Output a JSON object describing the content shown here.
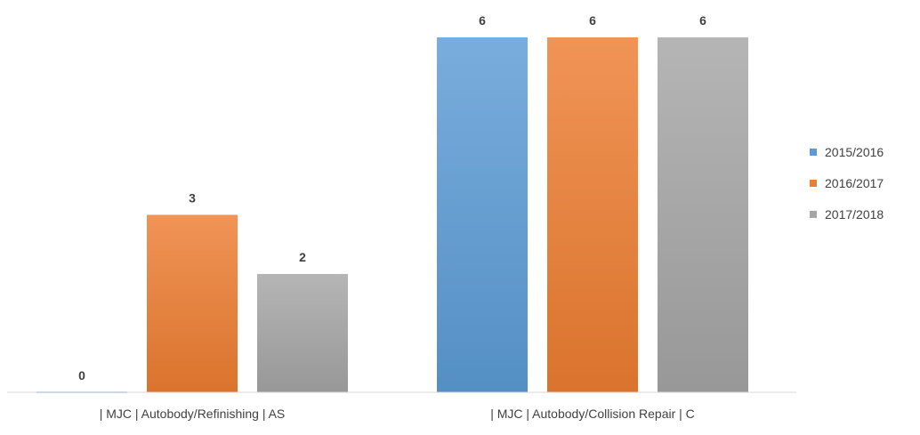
{
  "chart_data": {
    "type": "bar",
    "categories": [
      "| MJC | Autobody/Refinishing | AS",
      "| MJC | Autobody/Collision Repair | C"
    ],
    "series": [
      {
        "name": "2015/2016",
        "values": [
          0,
          6
        ],
        "color": "#5B9BD5"
      },
      {
        "name": "2016/2017",
        "values": [
          3,
          6
        ],
        "color": "#ED7D31"
      },
      {
        "name": "2017/2018",
        "values": [
          2,
          6
        ],
        "color": "#A5A5A5"
      }
    ],
    "title": "",
    "xlabel": "",
    "ylabel": "",
    "ylim": [
      0,
      6
    ],
    "grid": false,
    "legend_position": "right",
    "data_labels": true
  }
}
